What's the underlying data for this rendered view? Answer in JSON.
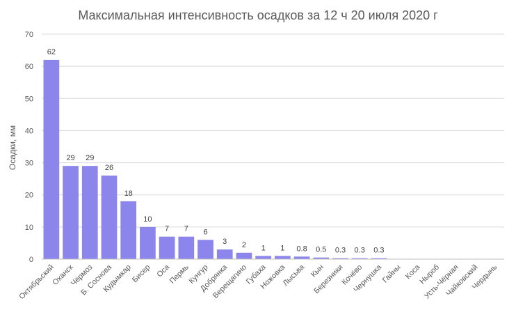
{
  "chart_data": {
    "type": "bar",
    "title": "Максимальная интенсивность осадков за 12 ч 20 июля 2020 г",
    "xlabel": "",
    "ylabel": "Осадки, мм",
    "ylim": [
      0,
      70
    ],
    "yticks": [
      0,
      10,
      20,
      30,
      40,
      50,
      60,
      70
    ],
    "grid": true,
    "legend": "none",
    "bar_color": "#8c86ec",
    "categories": [
      "Октябрьский",
      "Оханск",
      "Чёрмоз",
      "Б. Соснова",
      "Кудымкар",
      "Бисер",
      "Оса",
      "Пермь",
      "Кунгур",
      "Добрянка",
      "Верещагино",
      "Губаха",
      "Ножовка",
      "Лысьва",
      "Кын",
      "Березники",
      "Кочёво",
      "Чернушка",
      "Гайны",
      "Коса",
      "Ныроб",
      "Усть-Чёрная",
      "Чайковский",
      "Чердынь"
    ],
    "values": [
      62,
      29,
      29,
      26,
      18,
      10,
      7,
      7,
      6,
      3,
      2,
      1,
      1,
      0.8,
      0.5,
      0.3,
      0.3,
      0.3,
      0,
      0,
      0,
      0,
      0,
      0
    ],
    "data_labels": [
      "62",
      "29",
      "29",
      "26",
      "18",
      "10",
      "7",
      "7",
      "6",
      "3",
      "2",
      "1",
      "1",
      "0.8",
      "0.5",
      "0.3",
      "0.3",
      "0.3",
      "",
      "",
      "",
      "",
      "",
      ""
    ]
  }
}
